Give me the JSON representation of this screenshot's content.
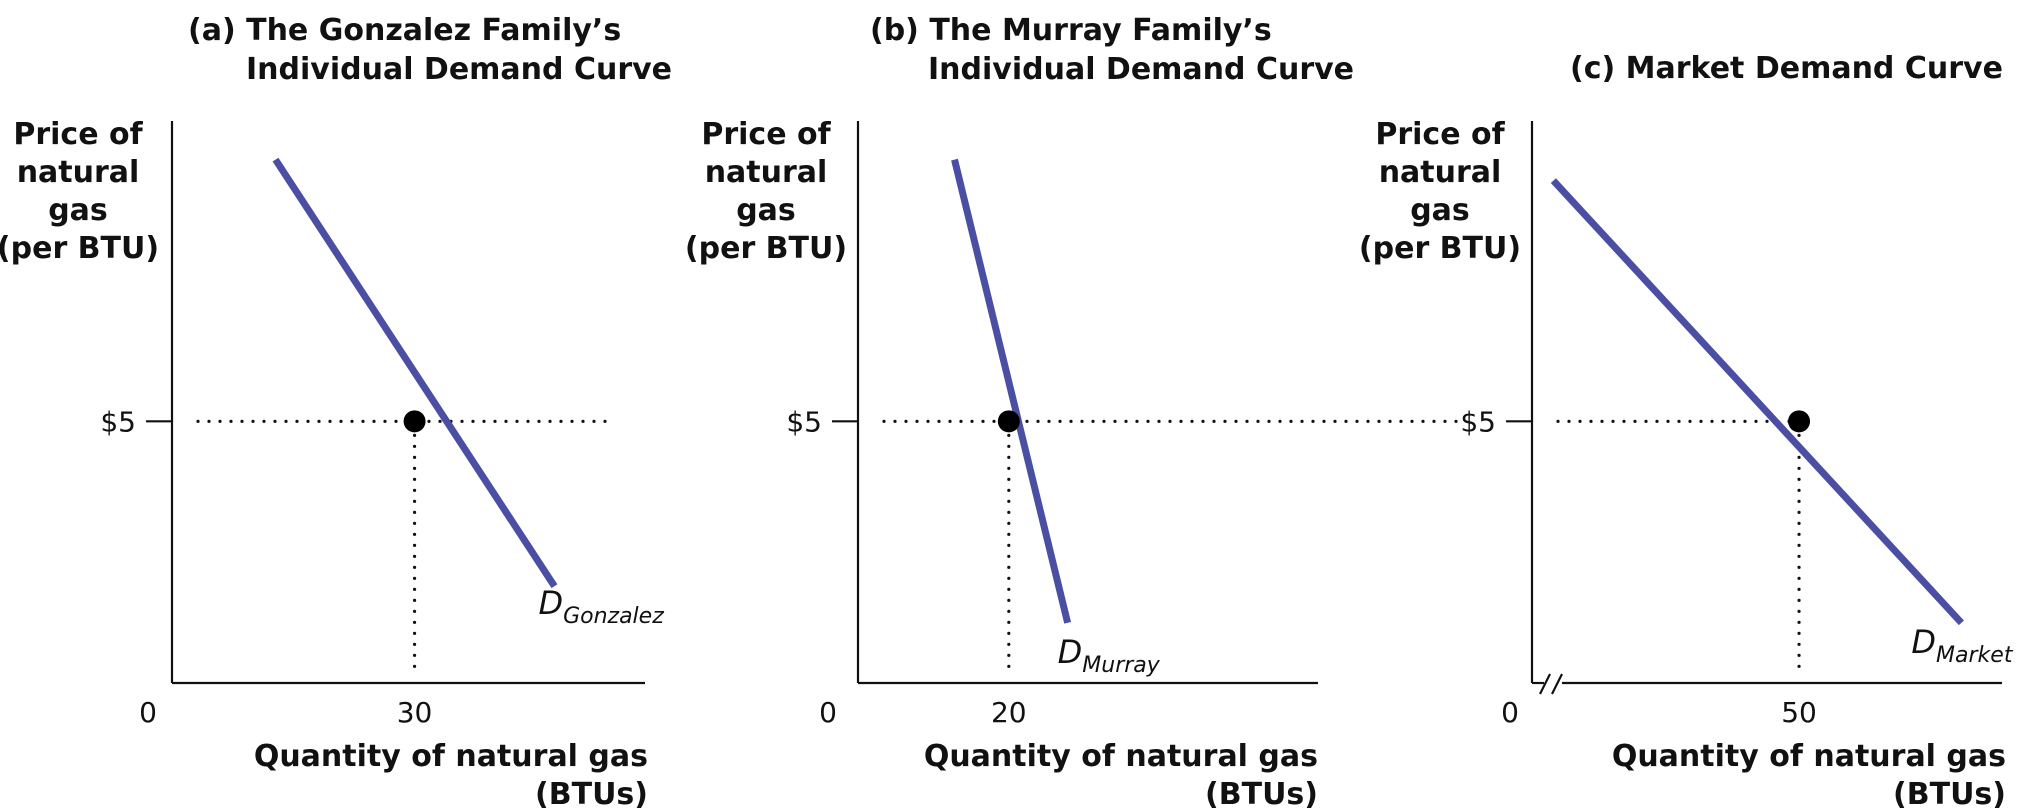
{
  "colors": {
    "curve": "#4B4FA3",
    "axis": "#111111",
    "point": "#000000"
  },
  "chart_data": [
    {
      "type": "line",
      "title_line1": "(a) The Gonzalez Family’s",
      "title_line2": "Individual Demand Curve",
      "ylabel_lines": [
        "Price of",
        "natural",
        "gas",
        "(per BTU)"
      ],
      "xlabel_lines": [
        "Quantity of natural gas",
        "(BTUs)"
      ],
      "origin_label": "0",
      "y_tick": {
        "value": 5,
        "label": "$5"
      },
      "x_tick": {
        "value": 30,
        "label": "30"
      },
      "xlim": [
        0,
        58.5
      ],
      "ylim": [
        0,
        10.7
      ],
      "axis_break": false,
      "series": [
        {
          "curve_label_main": "D",
          "curve_label_sub": "Gonzalez",
          "x": [
            12.8,
            47.3
          ],
          "y": [
            10,
            1.85
          ]
        }
      ],
      "point": {
        "x": 30,
        "y": 5
      }
    },
    {
      "type": "line",
      "title_line1": "(b) The Murray Family’s",
      "title_line2": "Individual Demand Curve",
      "ylabel_lines": [
        "Price of",
        "natural",
        "gas",
        "(per BTU)"
      ],
      "xlabel_lines": [
        "Quantity of natural gas",
        "(BTUs)"
      ],
      "origin_label": "0",
      "y_tick": {
        "value": 5,
        "label": "$5"
      },
      "x_tick": {
        "value": 20,
        "label": "20"
      },
      "xlim": [
        0,
        61
      ],
      "ylim": [
        0,
        10.7
      ],
      "axis_break": false,
      "series": [
        {
          "curve_label_main": "D",
          "curve_label_sub": "Murray",
          "x": [
            12.8,
            27.8
          ],
          "y": [
            10,
            1.15
          ]
        }
      ],
      "point": {
        "x": 20,
        "y": 5
      }
    },
    {
      "type": "line",
      "title_line1": "(c) Market Demand Curve",
      "title_line2": "",
      "ylabel_lines": [
        "Price of",
        "natural",
        "gas",
        "(per BTU)"
      ],
      "xlabel_lines": [
        "Quantity of natural gas",
        "(BTUs)"
      ],
      "origin_label": "0",
      "y_tick": {
        "value": 5,
        "label": "$5"
      },
      "x_tick": {
        "value": 50,
        "label": "50"
      },
      "xlim": [
        0,
        88
      ],
      "ylim": [
        0,
        10.7
      ],
      "axis_break": true,
      "series": [
        {
          "curve_label_main": "D",
          "curve_label_sub": "Market",
          "x": [
            4,
            80.4
          ],
          "y": [
            9.6,
            1.15
          ]
        }
      ],
      "point": {
        "x": 50,
        "y": 5
      }
    }
  ]
}
